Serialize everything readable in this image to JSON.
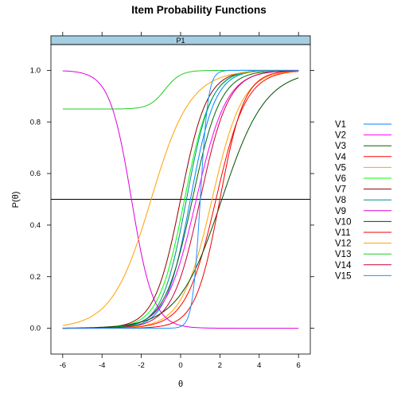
{
  "chart_data": {
    "type": "line",
    "title": "Item Probability Functions",
    "panel_label": "P1",
    "xlabel": "θ",
    "ylabel": "P(θ)",
    "xlim": [
      -6.6,
      6.6
    ],
    "ylim": [
      -0.1,
      1.1
    ],
    "x_ticks": [
      "-6",
      "-4",
      "-2",
      "0",
      "2",
      "4",
      "6"
    ],
    "y_ticks": [
      "0.0",
      "0.2",
      "0.4",
      "0.6",
      "0.8",
      "1.0"
    ],
    "reference_line_y": 0.5,
    "strip_color": "#a6cee3",
    "legend_position": "right",
    "x_range": [
      -6,
      6
    ],
    "series": [
      {
        "name": "V1",
        "color": "#0080ff",
        "a": 1.6,
        "b": 0.5,
        "c": 0.0
      },
      {
        "name": "V2",
        "color": "#ff00ff",
        "a": 1.3,
        "b": 0.8,
        "c": 0.0
      },
      {
        "name": "V3",
        "color": "#006400",
        "a": 1.4,
        "b": 0.6,
        "c": 0.0
      },
      {
        "name": "V4",
        "color": "#ff0000",
        "a": 1.3,
        "b": 1.8,
        "c": 0.0
      },
      {
        "name": "V5",
        "color": "#ffa500",
        "a": 1.3,
        "b": 1.6,
        "c": 0.0
      },
      {
        "name": "V6",
        "color": "#00ff00",
        "a": 1.5,
        "b": 0.2,
        "c": 0.0
      },
      {
        "name": "V7",
        "color": "#8b0000",
        "a": 1.5,
        "b": 0.0,
        "c": 0.0
      },
      {
        "name": "V8",
        "color": "#008b8b",
        "a": 1.6,
        "b": 0.3,
        "c": 0.0
      },
      {
        "name": "V9",
        "color": "#dd00dd",
        "a": -1.8,
        "b": -2.5,
        "c": 0.0
      },
      {
        "name": "V10",
        "color": "#004d00",
        "a": 0.9,
        "b": 2.1,
        "c": 0.0
      },
      {
        "name": "V11",
        "color": "#ee0000",
        "a": 1.6,
        "b": 2.0,
        "c": 0.0
      },
      {
        "name": "V12",
        "color": "#ffa000",
        "a": 1.0,
        "b": -1.5,
        "c": 0.0
      },
      {
        "name": "V13",
        "color": "#22cc22",
        "a": 2.5,
        "b": -0.8,
        "c": 0.85
      },
      {
        "name": "V14",
        "color": "#cc0033",
        "a": 1.4,
        "b": 1.0,
        "c": 0.0
      },
      {
        "name": "V15",
        "color": "#1e90ff",
        "a": 5.0,
        "b": 1.0,
        "c": 0.0
      }
    ]
  }
}
